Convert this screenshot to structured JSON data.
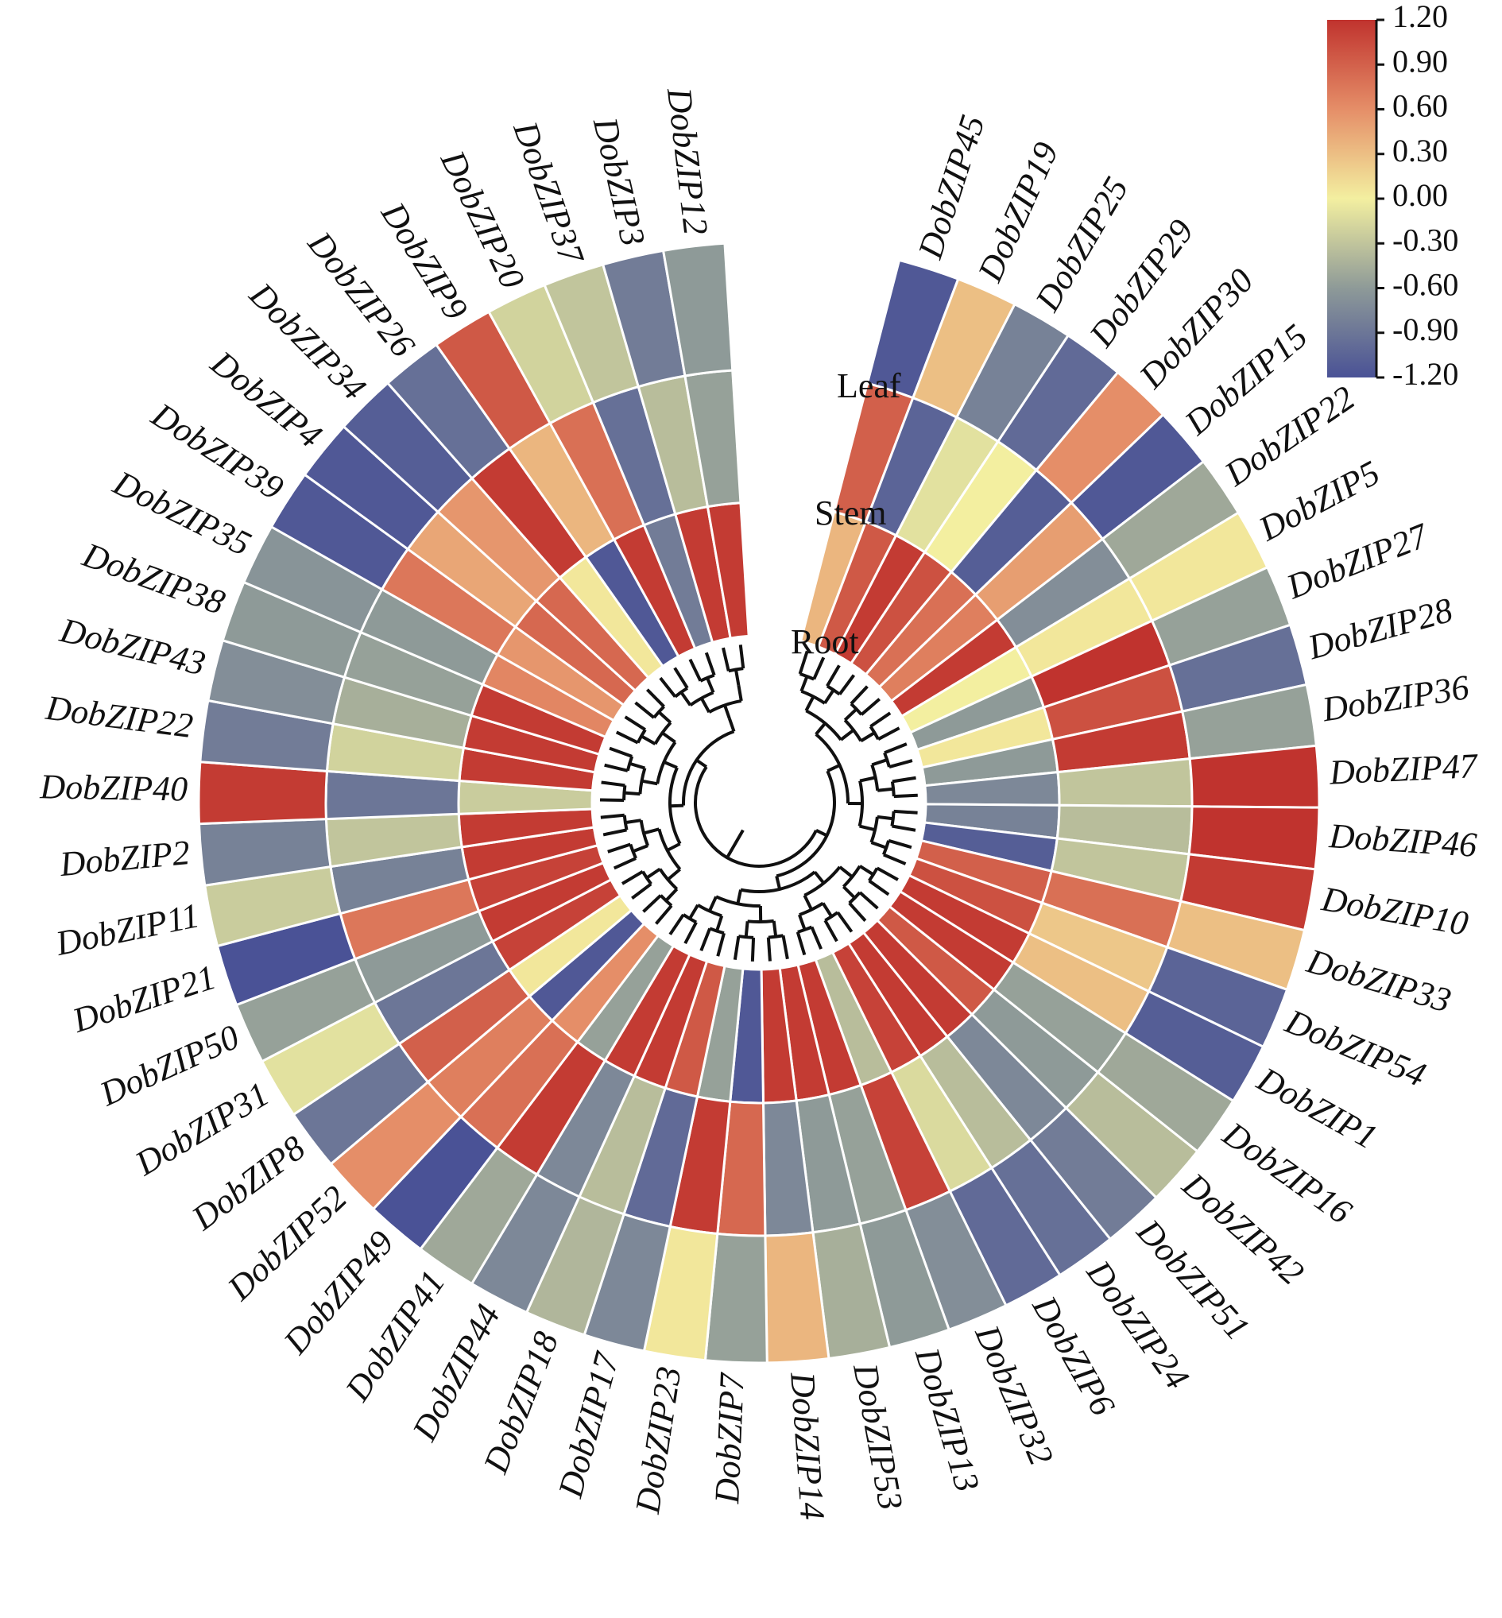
{
  "chart_data": {
    "type": "heatmap",
    "layout": "circular",
    "title": "",
    "rings": [
      "Root",
      "Stem",
      "Leaf"
    ],
    "ring_order": "inner-to-outer",
    "genes": [
      "DobZIP45",
      "DobZIP19",
      "DobZIP25",
      "DobZIP29",
      "DobZIP30",
      "DobZIP15",
      "DobZIP22",
      "DobZIP5",
      "DobZIP27",
      "DobZIP28",
      "DobZIP36",
      "DobZIP47",
      "DobZIP46",
      "DobZIP10",
      "DobZIP33",
      "DobZIP54",
      "DobZIP1",
      "DobZIP16",
      "DobZIP42",
      "DobZIP51",
      "DobZIP24",
      "DobZIP6",
      "DobZIP32",
      "DobZIP13",
      "DobZIP53",
      "DobZIP14",
      "DobZIP7",
      "DobZIP23",
      "DobZIP17",
      "DobZIP18",
      "DobZIP44",
      "DobZIP41",
      "DobZIP49",
      "DobZIP52",
      "DobZIP8",
      "DobZIP31",
      "DobZIP50",
      "DobZIP21",
      "DobZIP11",
      "DobZIP2",
      "DobZIP40",
      "DobZIP22",
      "DobZIP43",
      "DobZIP38",
      "DobZIP35",
      "DobZIP39",
      "DobZIP4",
      "DobZIP34",
      "DobZIP26",
      "DobZIP9",
      "DobZIP20",
      "DobZIP37",
      "DobZIP3",
      "DobZIP12"
    ],
    "values": [
      [
        0.35,
        0.9,
        -1.15
      ],
      [
        0.95,
        -1.05,
        0.3
      ],
      [
        1.15,
        -0.1,
        -0.8
      ],
      [
        1.0,
        0.0,
        -1.0
      ],
      [
        0.8,
        -1.1,
        0.6
      ],
      [
        0.7,
        0.5,
        -1.15
      ],
      [
        1.15,
        -0.7,
        -0.5
      ],
      [
        0.0,
        0.05,
        0.05
      ],
      [
        -0.6,
        1.2,
        -0.55
      ],
      [
        0.05,
        1.0,
        -0.95
      ],
      [
        -0.6,
        1.15,
        -0.55
      ],
      [
        -0.75,
        -0.3,
        1.2
      ],
      [
        -0.8,
        -0.35,
        1.2
      ],
      [
        -1.1,
        -0.3,
        1.15
      ],
      [
        0.9,
        0.8,
        0.3
      ],
      [
        1.0,
        0.25,
        -1.05
      ],
      [
        1.15,
        0.3,
        -1.1
      ],
      [
        1.15,
        -0.55,
        -0.5
      ],
      [
        0.95,
        -0.6,
        -0.35
      ],
      [
        1.15,
        -0.75,
        -0.85
      ],
      [
        1.15,
        -0.35,
        -0.95
      ],
      [
        1.1,
        -0.15,
        -1.0
      ],
      [
        -0.35,
        1.1,
        -0.7
      ],
      [
        1.15,
        -0.55,
        -0.6
      ],
      [
        1.15,
        -0.6,
        -0.45
      ],
      [
        1.15,
        -0.75,
        0.35
      ],
      [
        -1.15,
        0.85,
        -0.55
      ],
      [
        -0.55,
        1.15,
        0.05
      ],
      [
        0.95,
        -1.0,
        -0.75
      ],
      [
        1.15,
        -0.35,
        -0.4
      ],
      [
        1.15,
        -0.75,
        -0.75
      ],
      [
        -0.55,
        1.15,
        -0.5
      ],
      [
        0.6,
        0.8,
        -1.2
      ],
      [
        -1.15,
        0.7,
        0.6
      ],
      [
        0.05,
        0.9,
        -0.9
      ],
      [
        1.1,
        -0.9,
        -0.1
      ],
      [
        1.15,
        -0.6,
        -0.55
      ],
      [
        1.1,
        0.75,
        -1.2
      ],
      [
        1.15,
        -0.8,
        -0.25
      ],
      [
        1.15,
        -0.3,
        -0.8
      ],
      [
        -0.25,
        -0.9,
        1.15
      ],
      [
        1.15,
        -0.2,
        -0.85
      ],
      [
        1.15,
        -0.45,
        -0.7
      ],
      [
        1.15,
        -0.55,
        -0.6
      ],
      [
        0.65,
        -0.6,
        -0.65
      ],
      [
        0.55,
        0.75,
        -1.15
      ],
      [
        0.85,
        0.45,
        -1.15
      ],
      [
        0.85,
        0.55,
        -1.1
      ],
      [
        0.05,
        1.15,
        -0.95
      ],
      [
        -1.15,
        0.35,
        0.95
      ],
      [
        1.15,
        0.8,
        -0.2
      ],
      [
        -0.85,
        -0.95,
        -0.3
      ],
      [
        1.15,
        -0.35,
        -0.85
      ],
      [
        1.15,
        -0.55,
        -0.6
      ]
    ],
    "colorbar": {
      "min": -1.2,
      "max": 1.2,
      "ticks": [
        "1.20",
        "0.90",
        "0.60",
        "0.30",
        "0.00",
        "-0.30",
        "-0.60",
        "-0.90",
        "-1.20"
      ],
      "colors": [
        "#4a5296",
        "#8e9a98",
        "#f3efa0",
        "#e58e68",
        "#c0332e"
      ],
      "placement": "top-right"
    },
    "dendrogram": true
  }
}
